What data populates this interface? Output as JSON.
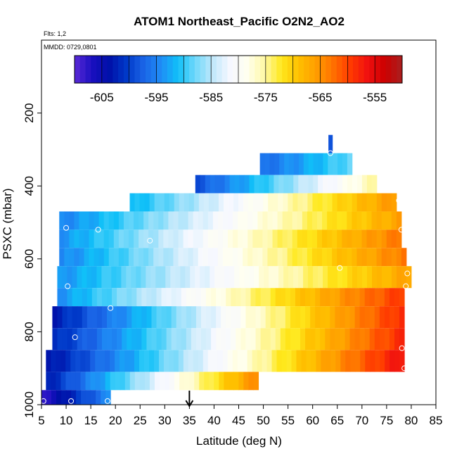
{
  "chart_data": {
    "type": "heatmap",
    "title": "ATOM1 Northeast_Pacific O2N2_AO2",
    "subtitle_flights": "Flts: 1,2",
    "subtitle_dates": "MMDD: 0729,0801",
    "xlabel": "Latitude (deg N)",
    "ylabel": "PSXC (mbar)",
    "xlim": [
      5,
      85
    ],
    "ylim": [
      1000,
      0
    ],
    "x_ticks": [
      5,
      10,
      15,
      20,
      25,
      30,
      35,
      40,
      45,
      50,
      55,
      60,
      65,
      70,
      75,
      80,
      85
    ],
    "y_ticks": [
      1000,
      800,
      600,
      400,
      200
    ],
    "colorbar": {
      "min": -610,
      "max": -550,
      "tick_values": [
        -605,
        -595,
        -585,
        -575,
        -565,
        -555
      ],
      "tick_labels": [
        "-605",
        "-595",
        "-585",
        "-575",
        "-565",
        "-555"
      ],
      "stops": [
        "#5b2ad6",
        "#1a0fc0",
        "#0010a8",
        "#0038c8",
        "#1a64e6",
        "#1f8cf5",
        "#10c0f8",
        "#70d8fa",
        "#c0e8fb",
        "#f6f8ff",
        "#fffff0",
        "#fff8a8",
        "#ffe81c",
        "#ffc000",
        "#ff9e00",
        "#ff7000",
        "#ff3a00",
        "#f01010",
        "#cc0000",
        "#a82020"
      ]
    },
    "bands": [
      {
        "p_top": 260,
        "p_bottom": 310,
        "lat_min": 63.2,
        "lat_max": 64.0,
        "v_left": -598,
        "v_right": -598
      },
      {
        "p_top": 310,
        "p_bottom": 370,
        "lat_min": 49.3,
        "lat_max": 68.0,
        "v_left": -597,
        "v_right": -588
      },
      {
        "p_top": 370,
        "p_bottom": 420,
        "lat_min": 36.2,
        "lat_max": 73.0,
        "v_left": -599,
        "v_right": -575
      },
      {
        "p_top": 420,
        "p_bottom": 470,
        "lat_min": 22.9,
        "lat_max": 77.0,
        "v_left": -592,
        "v_right": -565
      },
      {
        "p_top": 470,
        "p_bottom": 520,
        "lat_min": 8.6,
        "lat_max": 78.0,
        "v_left": -595,
        "v_right": -566
      },
      {
        "p_top": 520,
        "p_bottom": 570,
        "lat_min": 8.6,
        "lat_max": 78.0,
        "v_left": -594,
        "v_right": -563
      },
      {
        "p_top": 570,
        "p_bottom": 620,
        "lat_min": 8.6,
        "lat_max": 79.0,
        "v_left": -595,
        "v_right": -563
      },
      {
        "p_top": 620,
        "p_bottom": 680,
        "lat_min": 8.2,
        "lat_max": 80.0,
        "v_left": -594,
        "v_right": -566
      },
      {
        "p_top": 680,
        "p_bottom": 730,
        "lat_min": 8.2,
        "lat_max": 78.6,
        "v_left": -594,
        "v_right": -559
      },
      {
        "p_top": 730,
        "p_bottom": 790,
        "lat_min": 7.2,
        "lat_max": 78.6,
        "v_left": -603,
        "v_right": -558
      },
      {
        "p_top": 790,
        "p_bottom": 850,
        "lat_min": 7.2,
        "lat_max": 78.6,
        "v_left": -602,
        "v_right": -558
      },
      {
        "p_top": 850,
        "p_bottom": 910,
        "lat_min": 5.9,
        "lat_max": 78.6,
        "v_left": -604,
        "v_right": -556
      },
      {
        "p_top": 910,
        "p_bottom": 960,
        "lat_min": 5.9,
        "lat_max": 49.0,
        "v_left": -603,
        "v_right": -564
      },
      {
        "p_top": 960,
        "p_bottom": 1000,
        "lat_min": 5.0,
        "lat_max": 19.0,
        "v_left": -608,
        "v_right": -594
      }
    ],
    "sample_points": [
      {
        "lat": 63.6,
        "p": 310
      },
      {
        "lat": 77.5,
        "p": 440
      },
      {
        "lat": 10.0,
        "p": 515
      },
      {
        "lat": 16.5,
        "p": 520
      },
      {
        "lat": 78.0,
        "p": 520
      },
      {
        "lat": 27.0,
        "p": 550
      },
      {
        "lat": 65.5,
        "p": 625
      },
      {
        "lat": 79.2,
        "p": 640
      },
      {
        "lat": 10.3,
        "p": 675
      },
      {
        "lat": 78.9,
        "p": 675
      },
      {
        "lat": 19.0,
        "p": 735
      },
      {
        "lat": 11.8,
        "p": 815
      },
      {
        "lat": 78.1,
        "p": 845
      },
      {
        "lat": 78.6,
        "p": 900
      },
      {
        "lat": 5.4,
        "p": 990
      },
      {
        "lat": 11.0,
        "p": 990
      },
      {
        "lat": 18.4,
        "p": 990
      }
    ],
    "marker_arrow": {
      "lat": 35
    }
  }
}
